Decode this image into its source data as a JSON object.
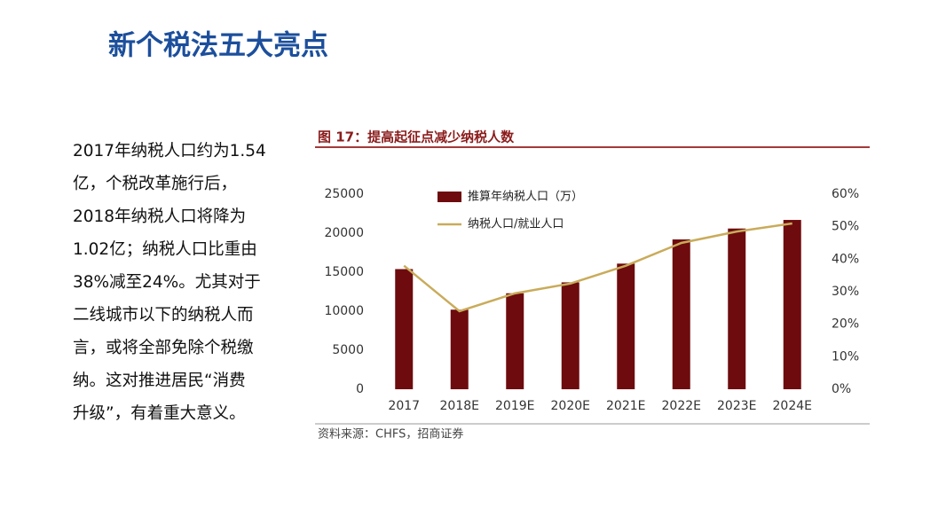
{
  "header": {
    "title": "新个税法五大亮点"
  },
  "body": {
    "lines": [
      "2017年纳税人口约为1.54",
      "亿，个税改革施行后，",
      "2018年纳税人口将降为",
      "1.02亿；纳税人口比重由",
      "38%减至24%。尤其对于",
      "二线城市以下的纳税人而",
      "言，或将全部免除个税缴",
      "纳。这对推进居民“消费",
      "升级”，有着重大意义。"
    ]
  },
  "chart_data": {
    "type": "bar",
    "title": "图 17：提高起征点减少纳税人数",
    "source": "资料来源：CHFS，招商证券",
    "categories": [
      "2017",
      "2018E",
      "2019E",
      "2020E",
      "2021E",
      "2022E",
      "2023E",
      "2024E"
    ],
    "series": [
      {
        "name": "推算年纳税人口（万）",
        "type": "bar",
        "color": "#6e0b0e",
        "values": [
          15400,
          10200,
          12300,
          13700,
          16100,
          19200,
          20600,
          21700
        ]
      },
      {
        "name": "纳税人口/就业人口",
        "type": "line",
        "axis": "y2",
        "color": "#c9ab5a",
        "values": [
          38,
          24,
          29.5,
          32.5,
          38,
          45,
          48.5,
          51
        ]
      }
    ],
    "ylim": [
      0,
      25000
    ],
    "yticks": [
      0,
      5000,
      10000,
      15000,
      20000,
      25000
    ],
    "y2lim": [
      0,
      60
    ],
    "y2ticks": [
      {
        "value": 0,
        "label": "0%"
      },
      {
        "value": 10,
        "label": "10%"
      },
      {
        "value": 20,
        "label": "20%"
      },
      {
        "value": 30,
        "label": "30%"
      },
      {
        "value": 40,
        "label": "40%"
      },
      {
        "value": 50,
        "label": "50%"
      },
      {
        "value": 60,
        "label": "60%"
      }
    ],
    "grid": false
  }
}
